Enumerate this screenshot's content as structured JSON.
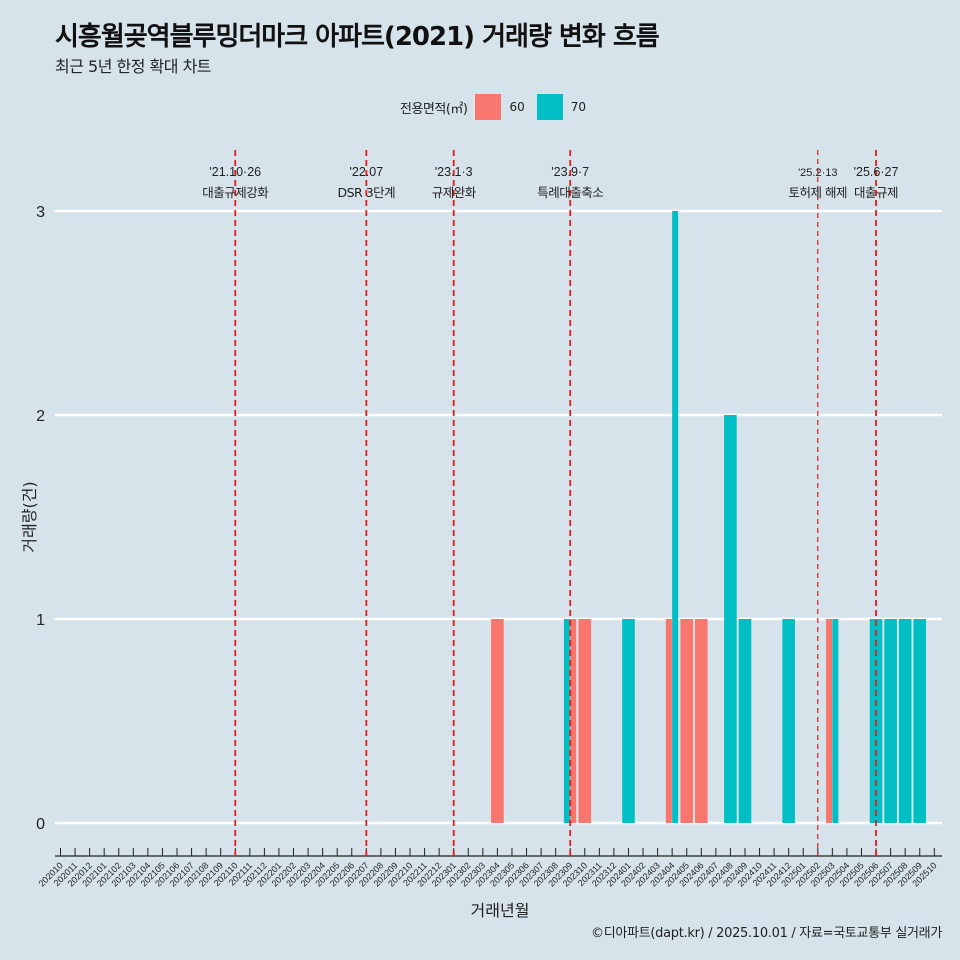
{
  "title": "시흥월곶역블루밍더마크 아파트(2021) 거래량 변화 흐름",
  "subtitle": "최근 5년 한정 확대 차트",
  "caption": "©디아파트(dapt.kr) / 2025.10.01 / 자료=국토교통부 실거래가",
  "legend": {
    "title": "전용면적(㎡)",
    "items": [
      {
        "label": "60",
        "color": "#f8766d"
      },
      {
        "label": "70",
        "color": "#00bfc4"
      }
    ]
  },
  "chart_data": {
    "type": "bar",
    "title": "시흥월곶역블루밍더마크 아파트(2021) 거래량 변화 흐름",
    "subtitle": "최근 5년 한정 확대 차트",
    "xlabel": "거래년월",
    "ylabel": "거래량(건)",
    "ylim": [
      0,
      3
    ],
    "yticks": [
      0,
      1,
      2,
      3
    ],
    "grid": true,
    "legend_position": "top",
    "categories": [
      "202010",
      "202011",
      "202012",
      "202101",
      "202102",
      "202103",
      "202104",
      "202105",
      "202106",
      "202107",
      "202108",
      "202109",
      "202110",
      "202111",
      "202112",
      "202201",
      "202202",
      "202203",
      "202204",
      "202205",
      "202206",
      "202207",
      "202208",
      "202209",
      "202210",
      "202211",
      "202212",
      "202301",
      "202302",
      "202303",
      "202304",
      "202305",
      "202306",
      "202307",
      "202308",
      "202309",
      "202310",
      "202311",
      "202312",
      "202401",
      "202402",
      "202403",
      "202404",
      "202405",
      "202406",
      "202407",
      "202408",
      "202409",
      "202410",
      "202411",
      "202412",
      "202501",
      "202502",
      "202503",
      "202504",
      "202505",
      "202506",
      "202507",
      "202508",
      "202509",
      "202510"
    ],
    "series": [
      {
        "name": "60",
        "color": "#f8766d",
        "points": [
          {
            "x": "202304",
            "y": 1
          },
          {
            "x": "202309",
            "y": 1
          },
          {
            "x": "202310",
            "y": 1
          },
          {
            "x": "202404",
            "y": 1
          },
          {
            "x": "202405",
            "y": 1
          },
          {
            "x": "202406",
            "y": 1
          },
          {
            "x": "202503",
            "y": 1
          }
        ]
      },
      {
        "name": "70",
        "color": "#00bfc4",
        "points": [
          {
            "x": "202309",
            "y": 1
          },
          {
            "x": "202401",
            "y": 1
          },
          {
            "x": "202404",
            "y": 3
          },
          {
            "x": "202408",
            "y": 2
          },
          {
            "x": "202409",
            "y": 1
          },
          {
            "x": "202412",
            "y": 1
          },
          {
            "x": "202503",
            "y": 1
          },
          {
            "x": "202506",
            "y": 1
          },
          {
            "x": "202507",
            "y": 1
          },
          {
            "x": "202508",
            "y": 1
          },
          {
            "x": "202509",
            "y": 1
          }
        ]
      }
    ],
    "annotations": [
      {
        "x": "202110",
        "date": "'21.10·26",
        "label": "대출규제강화",
        "style": "dashed"
      },
      {
        "x": "202207",
        "date": "'22.07",
        "label": "DSR 3단계",
        "style": "dashed"
      },
      {
        "x": "202301",
        "date": "'23.1·3",
        "label": "규제완화",
        "style": "dashed"
      },
      {
        "x": "202309",
        "date": "'23.9·7",
        "label": "특례대출축소",
        "style": "dashed"
      },
      {
        "x": "202502",
        "date": "'25.2·13",
        "label": "토허제 해제",
        "style": "thin-dashed"
      },
      {
        "x": "202506",
        "date": "'25.6·27",
        "label": "대출규제",
        "style": "dashed"
      }
    ]
  }
}
